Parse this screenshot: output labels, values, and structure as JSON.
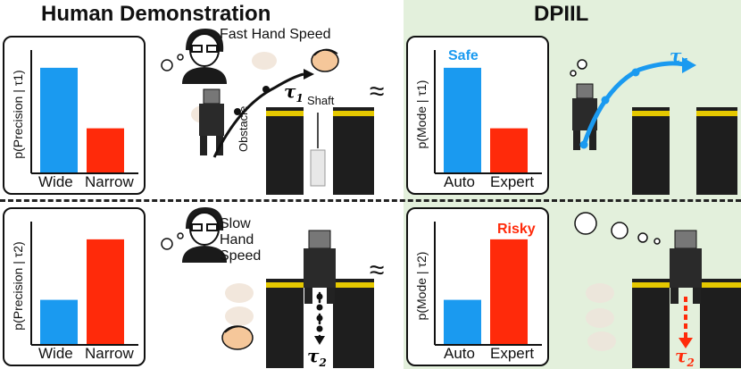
{
  "titles": {
    "left": "Human Demonstration",
    "right": "DPIIL"
  },
  "top_left": {
    "person_label": "Fast Hand Speed",
    "traj_label": "τ",
    "traj_sub": "1",
    "obstacle_label": "Obstacle",
    "shaft_label": "Shaft",
    "approx": "≈"
  },
  "bottom_left": {
    "person_label": [
      "Slow",
      "Hand",
      "Speed"
    ],
    "traj_label": "τ",
    "traj_sub": "2",
    "approx": "≈"
  },
  "top_right": {
    "annotation": "Safe",
    "traj_label": "τ",
    "traj_sub": "1"
  },
  "bottom_right": {
    "annotation": "Risky",
    "traj_label": "τ",
    "traj_sub": "2"
  },
  "colors": {
    "blue": "#1a9af0",
    "red": "#ff2a0a",
    "green_bg": "#e3f0dc"
  },
  "chart_data": [
    {
      "type": "bar",
      "ylabel": "p(Precision | τ1)",
      "categories": [
        "Wide",
        "Narrow"
      ],
      "values": [
        0.75,
        0.32
      ],
      "ylim": [
        0,
        0.8
      ]
    },
    {
      "type": "bar",
      "ylabel": "p(Mode | τ1)",
      "categories": [
        "Auto",
        "Expert"
      ],
      "values": [
        0.75,
        0.32
      ],
      "ylim": [
        0,
        0.8
      ],
      "annotation": "Safe"
    },
    {
      "type": "bar",
      "ylabel": "p(Precision | τ2)",
      "categories": [
        "Wide",
        "Narrow"
      ],
      "values": [
        0.32,
        0.75
      ],
      "ylim": [
        0,
        0.8
      ]
    },
    {
      "type": "bar",
      "ylabel": "p(Mode | τ2)",
      "categories": [
        "Auto",
        "Expert"
      ],
      "values": [
        0.32,
        0.75
      ],
      "ylim": [
        0,
        0.8
      ],
      "annotation": "Risky"
    }
  ]
}
